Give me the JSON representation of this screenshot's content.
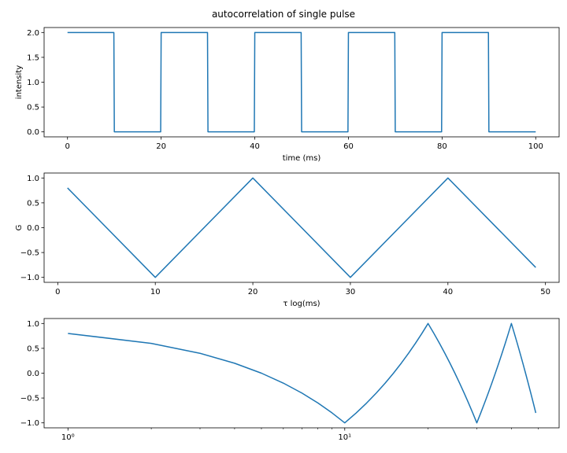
{
  "figure": {
    "title": "autocorrelation of single pulse"
  },
  "chart_data": [
    {
      "type": "line",
      "title": "",
      "xlabel": "time (ms)",
      "ylabel": "intensity",
      "xlim": [
        -5,
        105
      ],
      "ylim": [
        -0.1,
        2.1
      ],
      "xticks": [
        0,
        20,
        40,
        60,
        80,
        100
      ],
      "xtick_labels": [
        "0",
        "20",
        "40",
        "60",
        "80",
        "100"
      ],
      "yticks": [
        0.0,
        0.5,
        1.0,
        1.5,
        2.0
      ],
      "ytick_labels": [
        "0.0",
        "0.5",
        "1.0",
        "1.5",
        "2.0"
      ],
      "xscale": "linear",
      "grid": false,
      "color": "#1f77b4",
      "series": [
        {
          "x": [
            0,
            9.9,
            10,
            19.9,
            20,
            29.9,
            30,
            39.9,
            40,
            49.9,
            50,
            59.9,
            60,
            69.9,
            70,
            79.9,
            80,
            89.9,
            90,
            100
          ],
          "y": [
            2,
            2,
            0,
            0,
            2,
            2,
            0,
            0,
            2,
            2,
            0,
            0,
            2,
            2,
            0,
            0,
            2,
            2,
            0,
            0
          ]
        }
      ]
    },
    {
      "type": "line",
      "title": "",
      "xlabel": "τ log(ms)",
      "ylabel": "G",
      "xlim": [
        -1.4,
        51.4
      ],
      "ylim": [
        -1.1,
        1.1
      ],
      "xticks": [
        0,
        10,
        20,
        30,
        40,
        50
      ],
      "xtick_labels": [
        "0",
        "10",
        "20",
        "30",
        "40",
        "50"
      ],
      "yticks": [
        -1.0,
        -0.5,
        0.0,
        0.5,
        1.0
      ],
      "ytick_labels": [
        "−1.0",
        "−0.5",
        "0.0",
        "0.5",
        "1.0"
      ],
      "xscale": "linear",
      "grid": false,
      "color": "#1f77b4",
      "series": [
        {
          "x": [
            1,
            10,
            20,
            30,
            40,
            49
          ],
          "y": [
            0.8,
            -1.0,
            1.0,
            -1.0,
            1.0,
            -0.8
          ]
        }
      ]
    },
    {
      "type": "line",
      "title": "",
      "xlabel": "",
      "ylabel": "",
      "xlim": [
        0.82,
        59.5
      ],
      "ylim": [
        -1.1,
        1.1
      ],
      "xticks": [
        1,
        10
      ],
      "xtick_labels": [
        "10⁰",
        "10¹"
      ],
      "yticks": [
        -1.0,
        -0.5,
        0.0,
        0.5,
        1.0
      ],
      "ytick_labels": [
        "−1.0",
        "−0.5",
        "0.0",
        "0.5",
        "1.0"
      ],
      "xscale": "log",
      "grid": false,
      "color": "#1f77b4",
      "series": [
        {
          "x": [
            1,
            2,
            3,
            4,
            5,
            6,
            7,
            8,
            9,
            10,
            11,
            12,
            13,
            14,
            15,
            16,
            17,
            18,
            19,
            20,
            21,
            22,
            23,
            24,
            25,
            26,
            27,
            28,
            29,
            30,
            31,
            32,
            33,
            34,
            35,
            36,
            37,
            38,
            39,
            40,
            41,
            42,
            43,
            44,
            45,
            46,
            47,
            48,
            49
          ],
          "y": [
            0.8,
            0.6,
            0.4,
            0.2,
            0.0,
            -0.2,
            -0.4,
            -0.6,
            -0.8,
            -1.0,
            -0.8,
            -0.6,
            -0.4,
            -0.2,
            0.0,
            0.2,
            0.4,
            0.6,
            0.8,
            1.0,
            0.8,
            0.6,
            0.4,
            0.2,
            0.0,
            -0.2,
            -0.4,
            -0.6,
            -0.8,
            -1.0,
            -0.8,
            -0.6,
            -0.4,
            -0.2,
            0.0,
            0.2,
            0.4,
            0.6,
            0.8,
            1.0,
            0.8,
            0.6,
            0.4,
            0.2,
            0.0,
            -0.2,
            -0.4,
            -0.6,
            -0.8
          ]
        }
      ]
    }
  ]
}
